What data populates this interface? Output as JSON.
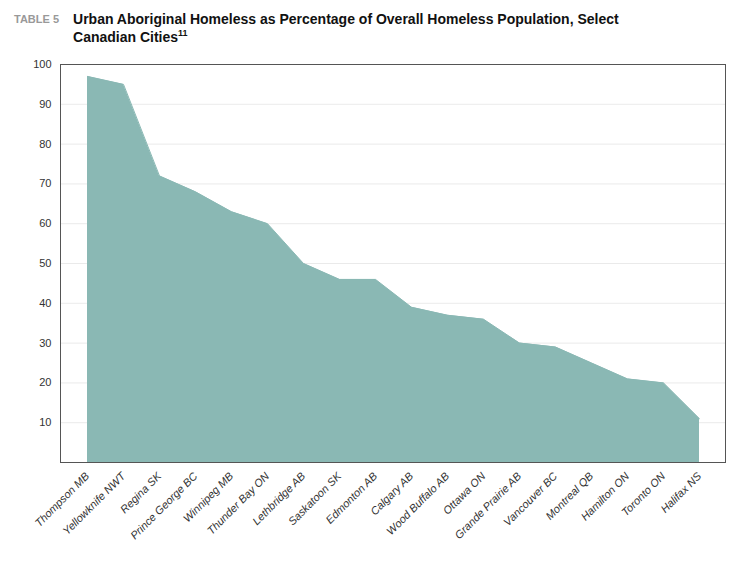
{
  "chart_data": {
    "type": "area",
    "title": "Urban Aboriginal Homeless as Percentage of Overall Homeless Population, Select Canadian Cities",
    "annotations": [
      "TABLE 5",
      "11"
    ],
    "categories": [
      "Thompson MB",
      "Yellowknife NWT",
      "Regina SK",
      "Prince George BC",
      "Winnipeg MB",
      "Thunder Bay ON",
      "Lethbridge AB",
      "Saskatoon SK",
      "Edmonton AB",
      "Calgary AB",
      "Wood Buffalo AB",
      "Ottawa ON",
      "Grande Prairie AB",
      "Vancouver BC",
      "Montreal QB",
      "Hamilton ON",
      "Toronto ON",
      "Halifax NS"
    ],
    "values": [
      97,
      95,
      72,
      68,
      63,
      60,
      50,
      46,
      46,
      39,
      37,
      36,
      30,
      29,
      25,
      21,
      20,
      11
    ],
    "color": "#8ab8b4",
    "ylim": [
      0,
      100
    ],
    "yticks": [
      10,
      20,
      30,
      40,
      50,
      60,
      70,
      80,
      90,
      100
    ],
    "grid": true
  }
}
